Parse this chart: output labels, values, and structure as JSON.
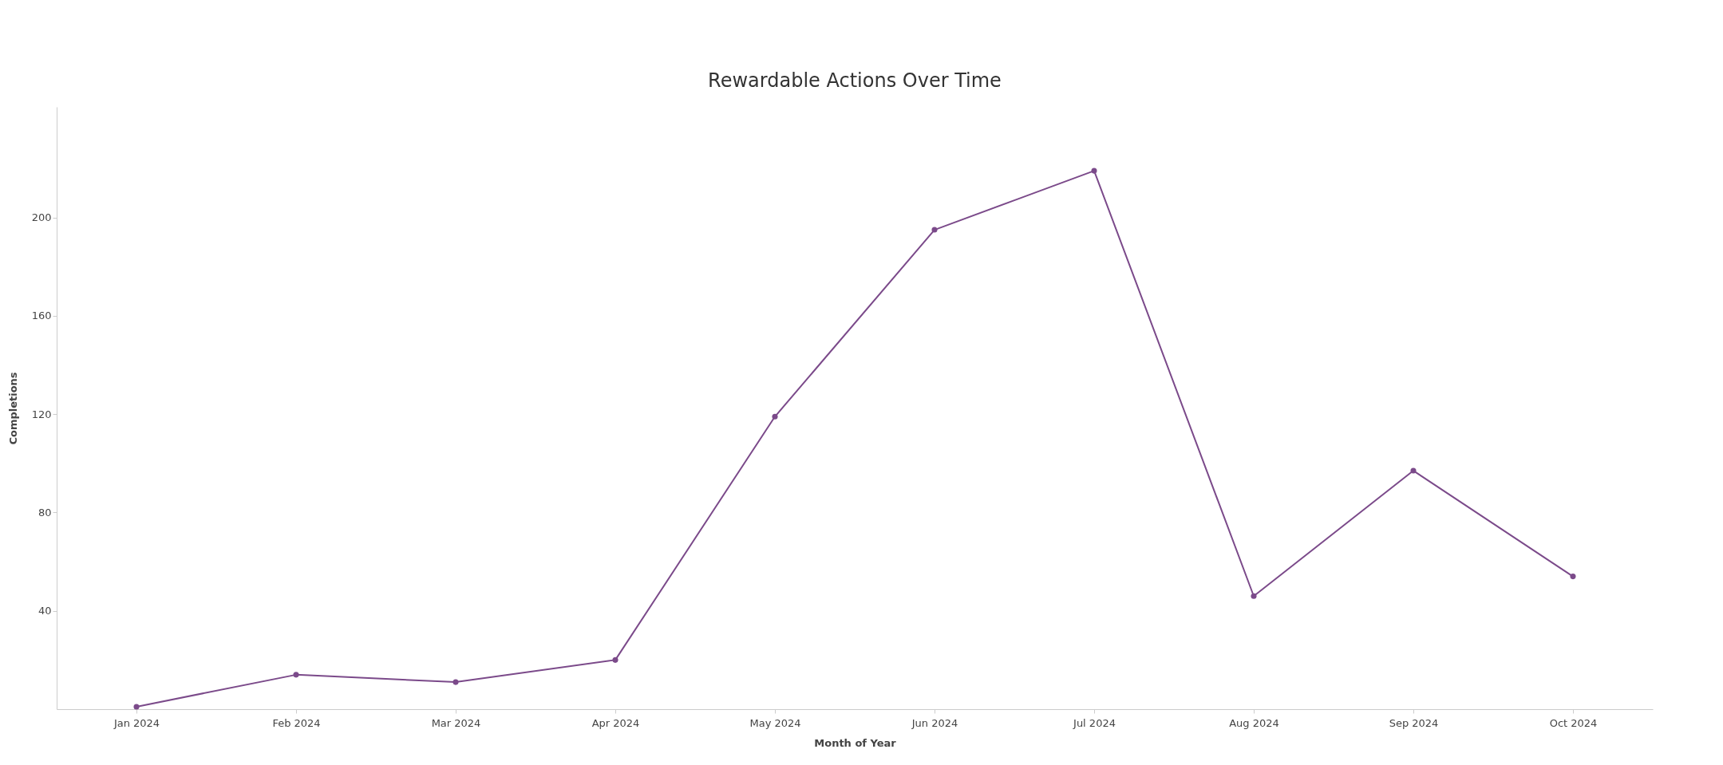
{
  "chart_data": {
    "type": "line",
    "title": "Rewardable Actions Over Time",
    "xlabel": "Month of Year",
    "ylabel": "Completions",
    "categories": [
      "Jan 2024",
      "Feb 2024",
      "Mar 2024",
      "Apr 2024",
      "May 2024",
      "Jun 2024",
      "Jul 2024",
      "Aug 2024",
      "Sep 2024",
      "Oct 2024"
    ],
    "series": [
      {
        "color": "#7b4a8a",
        "values": [
          1,
          14,
          11,
          20,
          119,
          195,
          219,
          46,
          97,
          54
        ]
      }
    ],
    "ylim": [
      0,
      245
    ],
    "yticks": [
      40,
      80,
      120,
      160,
      200
    ],
    "grid": false,
    "marker": "circle",
    "line_style": "solid"
  }
}
